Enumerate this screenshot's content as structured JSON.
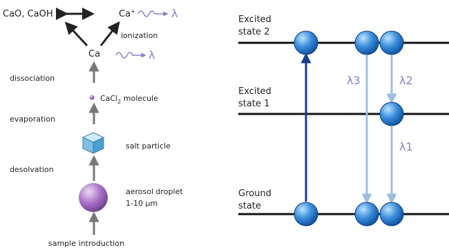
{
  "left_panel": {
    "products": "CaO, CaOH",
    "ion": {
      "text": "Ca",
      "sup": "+"
    },
    "ion_emission": "λ",
    "ionization": "ionization",
    "atom": "Ca",
    "atom_emission": "λ",
    "steps": [
      "dissociation",
      "evaporation",
      "desolvation"
    ],
    "molecule": {
      "text": "CaCl",
      "sub": "2",
      "rest": " molecule"
    },
    "salt": "salt particle",
    "droplet": [
      "aerosol droplet",
      "1-10 µm"
    ],
    "introduction": "sample introduction"
  },
  "right_panel": {
    "levels": [
      [
        "Excited",
        "state 2"
      ],
      [
        "Excited",
        "state 1"
      ],
      [
        "Ground",
        "state"
      ]
    ],
    "transitions": [
      "λ3",
      "λ2",
      "λ1"
    ]
  }
}
